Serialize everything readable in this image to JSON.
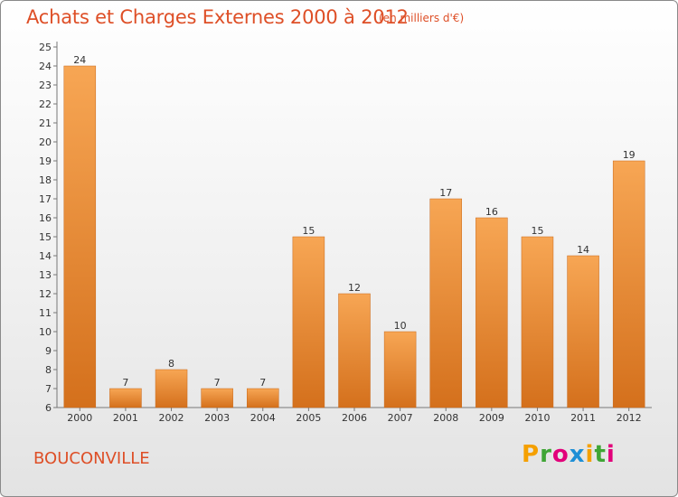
{
  "header": {
    "title": "Achats et Charges Externes 2000 à 2012",
    "subtitle": "(en milliers d'€)"
  },
  "footer": {
    "commune": "BOUCONVILLE",
    "logo_letters": [
      "P",
      "r",
      "o",
      "x",
      "i",
      "t",
      "i"
    ],
    "logo_colors": [
      "#f5a000",
      "#3fa535",
      "#e2007a",
      "#1e8fd6",
      "#f5a000",
      "#3fa535",
      "#e2007a"
    ]
  },
  "colors": {
    "bar_light": "#f7a654",
    "bar_dark": "#d4701c",
    "accent": "#de4f27"
  },
  "chart_data": {
    "type": "bar",
    "title": "Achats et Charges Externes 2000 à 2012",
    "subtitle": "(en milliers d'€)",
    "categories": [
      "2000",
      "2001",
      "2002",
      "2003",
      "2004",
      "2005",
      "2006",
      "2007",
      "2008",
      "2009",
      "2010",
      "2011",
      "2012"
    ],
    "values": [
      24,
      7,
      8,
      7,
      7,
      15,
      12,
      10,
      17,
      16,
      15,
      14,
      19
    ],
    "ylim": [
      6,
      25
    ],
    "yticks": [
      6,
      7,
      8,
      9,
      10,
      11,
      12,
      13,
      14,
      15,
      16,
      17,
      18,
      19,
      20,
      21,
      22,
      23,
      24,
      25
    ],
    "grid": false,
    "legend": "none"
  }
}
